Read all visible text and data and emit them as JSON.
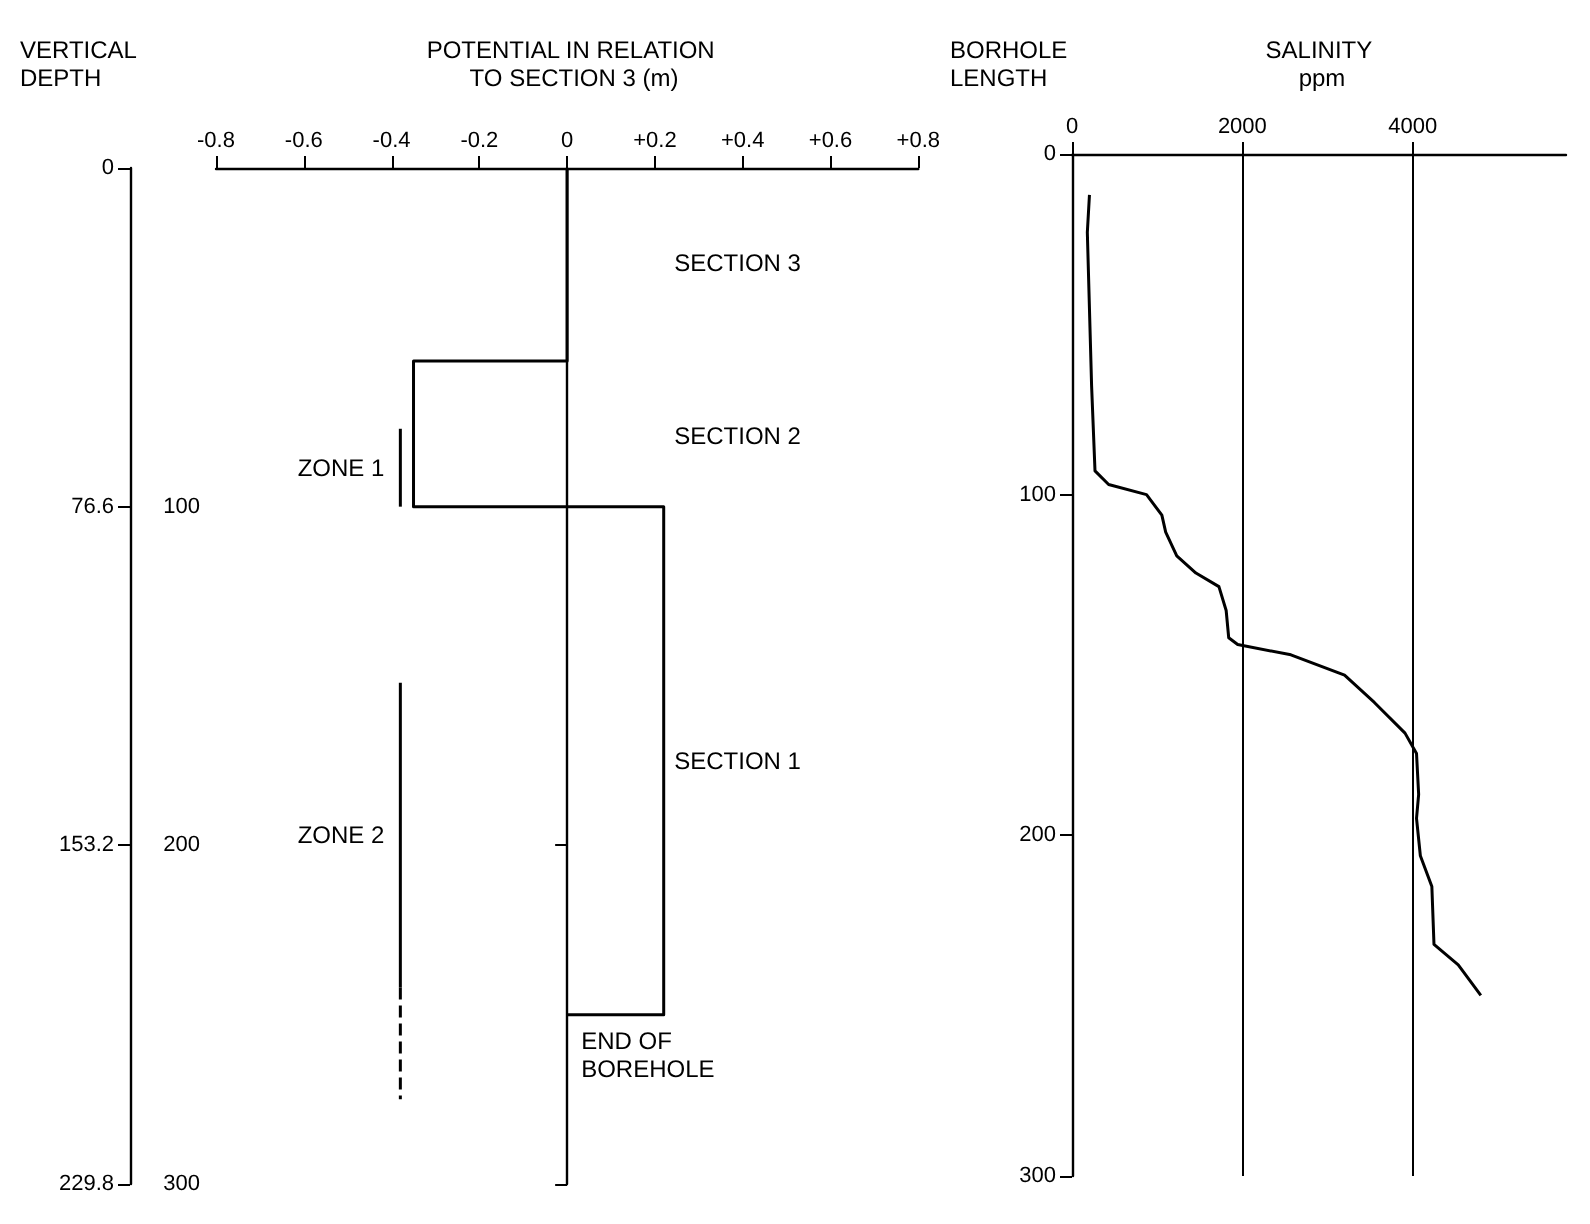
{
  "chart_data": [
    {
      "type": "line",
      "xlabel": "POTENTIAL IN RELATION TO SECTION 3 (m)",
      "y2label": "VERTICAL DEPTH",
      "xlim": [
        -0.8,
        0.8
      ],
      "xticks": [
        -0.8,
        -0.6,
        -0.4,
        -0.2,
        0,
        {
          "value": 0.2,
          "label": "+0.2"
        },
        {
          "value": 0.4,
          "label": "+0.4"
        },
        {
          "value": 0.6,
          "label": "+0.6"
        },
        {
          "value": 0.8,
          "label": "+0.8"
        }
      ],
      "ylim": [
        300,
        0
      ],
      "yticks": [
        {
          "value": 0,
          "label": null
        },
        100,
        200,
        300
      ],
      "y2lim": [
        229.8,
        0
      ],
      "y2ticks": [
        0,
        76.6,
        153.2,
        229.8
      ],
      "marker": "none",
      "series": [
        {
          "color": "#000000",
          "x": [
            0,
            0,
            -0.35,
            -0.35,
            0.22,
            0.22,
            0
          ],
          "values": [
            0,
            57,
            57,
            100,
            100,
            250,
            250
          ]
        },
        {
          "name": "ZONE 1",
          "color": "#000000",
          "x": [
            -0.38,
            -0.38
          ],
          "values": [
            77,
            100
          ]
        },
        {
          "name": "ZONE 2",
          "color": "#000000",
          "x": [
            -0.38,
            -0.38
          ],
          "values": [
            152,
            242
          ]
        },
        {
          "color": "#000000",
          "line_style": "dashed",
          "x": [
            -0.38,
            -0.38
          ],
          "values": [
            242,
            275
          ]
        }
      ],
      "annotations": [
        "SECTION 3",
        "SECTION 2",
        "SECTION 1",
        "END OF BOREHOLE"
      ]
    },
    {
      "type": "line",
      "xlabel": "SALINITY ppm",
      "ylabel": "BORHOLE LENGTH",
      "xlim": [
        0,
        5800
      ],
      "xticks": [
        0,
        2000,
        4000
      ],
      "ylim": [
        300,
        0
      ],
      "yticks": [
        0,
        100,
        200,
        300
      ],
      "grid": "x",
      "marker": "none",
      "series": [
        {
          "color": "#000000",
          "x": [
            205,
            180,
            230,
            270,
            430,
            875,
            1055,
            1100,
            1230,
            1455,
            1725,
            1810,
            1840,
            1945,
            2570,
            3200,
            3550,
            3910,
            4045,
            4070,
            4045,
            4090,
            4225,
            4250,
            4535,
            4800
          ],
          "values": [
            12,
            23,
            68,
            93,
            97,
            100,
            106,
            111,
            118,
            123,
            127,
            134,
            142,
            144,
            147,
            153,
            161,
            170,
            176,
            188,
            195,
            206,
            215,
            232,
            238,
            247
          ]
        }
      ]
    }
  ]
}
